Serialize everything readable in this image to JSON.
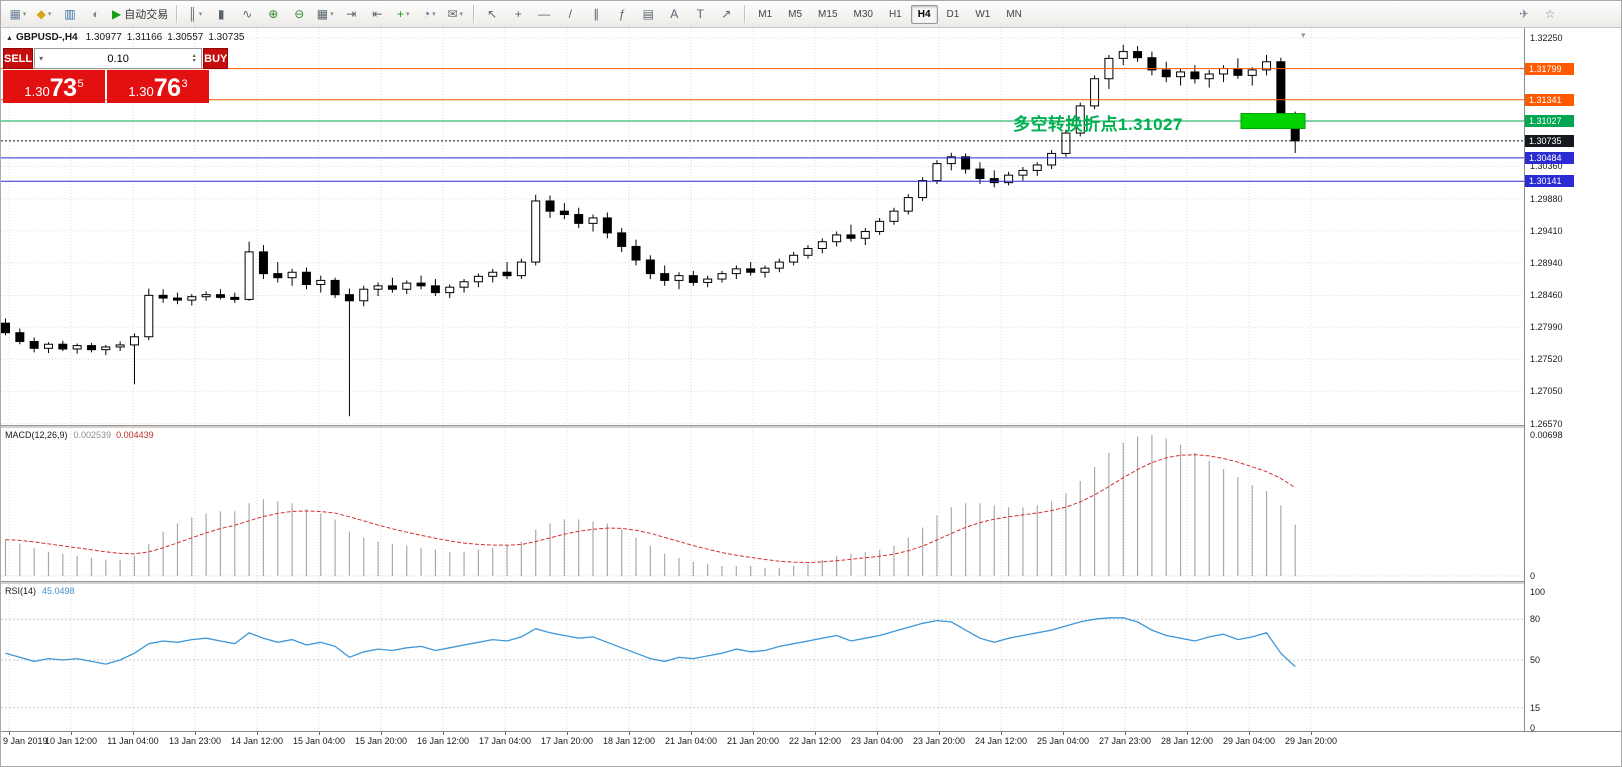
{
  "toolbar": {
    "standard_items": [
      {
        "name": "new-chart-button",
        "glyph": "▦",
        "color": "#6b7f98",
        "dropdown": true
      },
      {
        "name": "profiles-button",
        "glyph": "◆",
        "color": "#d8a418",
        "dropdown": true
      },
      {
        "name": "market-watch-button",
        "glyph": "▥",
        "color": "#3a6ea5"
      },
      {
        "name": "navigator-button",
        "glyph": "◐",
        "color": "#7d8a96"
      },
      {
        "name": "autotrading-button",
        "glyph": "▶",
        "color": "#12a112",
        "label": "自动交易"
      }
    ],
    "chart_items": [
      {
        "name": "bar-chart-button",
        "glyph": "║",
        "dropdown": true
      },
      {
        "name": "candlestick-button",
        "glyph": "▮"
      },
      {
        "name": "line-chart-button",
        "glyph": "∿"
      },
      {
        "name": "zoom-in-button",
        "glyph": "⊕",
        "color": "#2e8b2e"
      },
      {
        "name": "zoom-out-button",
        "glyph": "⊖",
        "color": "#2e8b2e"
      },
      {
        "name": "tile-windows-button",
        "glyph": "▦",
        "dropdown": true
      },
      {
        "name": "auto-scroll-button",
        "glyph": "⇥"
      },
      {
        "name": "chart-shift-button",
        "glyph": "⇤"
      },
      {
        "name": "indicators-button",
        "glyph": "+",
        "color": "#12a112",
        "dropdown": true
      },
      {
        "name": "periods-button",
        "glyph": "◔",
        "color": "#3a6ea5",
        "dropdown": true
      },
      {
        "name": "templates-button",
        "glyph": "✉",
        "dropdown": true
      }
    ],
    "line_items": [
      {
        "name": "cursor-button",
        "glyph": "↖"
      },
      {
        "name": "crosshair-button",
        "glyph": "+"
      },
      {
        "name": "horizontal-line-button",
        "glyph": "—"
      },
      {
        "name": "trendline-button",
        "glyph": "/"
      },
      {
        "name": "channel-button",
        "glyph": "∥"
      },
      {
        "name": "fibonacci-button",
        "glyph": "ƒ"
      },
      {
        "name": "grid-button",
        "glyph": "▤"
      },
      {
        "name": "text-button",
        "glyph": "A"
      },
      {
        "name": "label-button",
        "glyph": "T"
      },
      {
        "name": "arrows-button",
        "glyph": "↗"
      }
    ],
    "timeframes": {
      "items": [
        "M1",
        "M5",
        "M15",
        "M30",
        "H1",
        "H4",
        "D1",
        "W1",
        "MN"
      ],
      "active": "H4"
    },
    "right_items": [
      {
        "name": "send-button",
        "glyph": "✈",
        "color": "#7d8a96"
      },
      {
        "name": "community-button",
        "glyph": "☆",
        "color": "#7d8a96"
      }
    ]
  },
  "icons": {
    "chart_dropdown": "▾",
    "symbol_marker": "▲",
    "volume_up": "▴",
    "volume_down": "▾",
    "volume_preset": "▾"
  },
  "symbol_header": {
    "title": "GBPUSD-,H4",
    "open": "1.30977",
    "high": "1.31166",
    "low": "1.30557",
    "close": "1.30735"
  },
  "one_click": {
    "sell_label": "SELL",
    "buy_label": "BUY",
    "volume": "0.10",
    "sell_price": {
      "prefix": "1.30",
      "big": "73",
      "sup": "5"
    },
    "buy_price": {
      "prefix": "1.30",
      "big": "76",
      "sup": "3"
    }
  },
  "annotation": {
    "text": "多空转换折点1.31027",
    "color": "#00b050"
  },
  "levels": [
    {
      "price": 1.31799,
      "label": "1.31799",
      "color": "#ff5a00",
      "style": "solid"
    },
    {
      "price": 1.31341,
      "label": "1.31341",
      "color": "#ff5a00",
      "style": "solid"
    },
    {
      "price": 1.31027,
      "label": "1.31027",
      "color": "#00a651",
      "style": "solid"
    },
    {
      "price": 1.30735,
      "label": "1.30735",
      "color": "#15191d",
      "style": "dotted"
    },
    {
      "price": 1.30484,
      "label": "1.30484",
      "color": "#2b2bd4",
      "style": "solid"
    },
    {
      "price": 1.30141,
      "label": "1.30141",
      "color": "#2b2bd4",
      "style": "solid"
    }
  ],
  "highlight_rect": {
    "price": 1.31027,
    "color": "#00d300",
    "border": "#00a000"
  },
  "price_axis_gridlines": [
    1.3225,
    1.3036,
    1.2988,
    1.2941,
    1.2894,
    1.2846,
    1.2799,
    1.2752,
    1.2705,
    1.2657
  ],
  "time_axis": {
    "labels": [
      "9 Jan 2019",
      "10 Jan 12:00",
      "11 Jan 04:00",
      "13 Jan 23:00",
      "14 Jan 12:00",
      "15 Jan 04:00",
      "15 Jan 20:00",
      "16 Jan 12:00",
      "17 Jan 04:00",
      "17 Jan 20:00",
      "18 Jan 12:00",
      "21 Jan 04:00",
      "21 Jan 20:00",
      "22 Jan 12:00",
      "23 Jan 04:00",
      "23 Jan 20:00",
      "24 Jan 12:00",
      "25 Jan 04:00",
      "27 Jan 23:00",
      "28 Jan 12:00",
      "29 Jan 04:00",
      "29 Jan 20:00"
    ]
  },
  "chart_data": {
    "type": "candlestick",
    "symbol": "GBPUSD-",
    "timeframe": "H4",
    "price_range": [
      1.2657,
      1.3225
    ],
    "candles": [
      [
        1.2805,
        1.2812,
        1.2787,
        1.2791
      ],
      [
        1.2791,
        1.2797,
        1.2774,
        1.2778
      ],
      [
        1.2778,
        1.2784,
        1.2762,
        1.2768
      ],
      [
        1.2768,
        1.2777,
        1.2761,
        1.2774
      ],
      [
        1.2774,
        1.2779,
        1.2764,
        1.2767
      ],
      [
        1.2767,
        1.2775,
        1.276,
        1.2772
      ],
      [
        1.2772,
        1.2776,
        1.2762,
        1.2766
      ],
      [
        1.2766,
        1.2773,
        1.2758,
        1.277
      ],
      [
        1.277,
        1.2778,
        1.2764,
        1.2773
      ],
      [
        1.2773,
        1.279,
        1.2715,
        1.2785
      ],
      [
        1.2785,
        1.2856,
        1.278,
        1.2846
      ],
      [
        1.2846,
        1.2855,
        1.2835,
        1.2842
      ],
      [
        1.2842,
        1.285,
        1.2833,
        1.2839
      ],
      [
        1.2839,
        1.2848,
        1.2831,
        1.2844
      ],
      [
        1.2844,
        1.2852,
        1.2838,
        1.2847
      ],
      [
        1.2847,
        1.2855,
        1.284,
        1.2843
      ],
      [
        1.2843,
        1.285,
        1.2835,
        1.284
      ],
      [
        1.284,
        1.2925,
        1.2838,
        1.291
      ],
      [
        1.291,
        1.292,
        1.287,
        1.2878
      ],
      [
        1.2878,
        1.2895,
        1.2865,
        1.2872
      ],
      [
        1.2872,
        1.2885,
        1.286,
        1.288
      ],
      [
        1.288,
        1.2887,
        1.2855,
        1.2862
      ],
      [
        1.2862,
        1.2875,
        1.285,
        1.2868
      ],
      [
        1.2868,
        1.2872,
        1.2842,
        1.2847
      ],
      [
        1.2847,
        1.2856,
        1.2668,
        1.2838
      ],
      [
        1.2838,
        1.286,
        1.283,
        1.2855
      ],
      [
        1.2855,
        1.2865,
        1.2845,
        1.286
      ],
      [
        1.286,
        1.2872,
        1.285,
        1.2855
      ],
      [
        1.2855,
        1.2868,
        1.2848,
        1.2864
      ],
      [
        1.2864,
        1.2875,
        1.2855,
        1.286
      ],
      [
        1.286,
        1.287,
        1.2845,
        1.285
      ],
      [
        1.285,
        1.2862,
        1.2842,
        1.2858
      ],
      [
        1.2858,
        1.287,
        1.285,
        1.2866
      ],
      [
        1.2866,
        1.2878,
        1.2858,
        1.2874
      ],
      [
        1.2874,
        1.2885,
        1.2865,
        1.288
      ],
      [
        1.288,
        1.2895,
        1.287,
        1.2875
      ],
      [
        1.2875,
        1.29,
        1.287,
        1.2895
      ],
      [
        1.2895,
        1.2994,
        1.289,
        1.2985
      ],
      [
        1.2985,
        1.2993,
        1.296,
        1.297
      ],
      [
        1.297,
        1.2982,
        1.2958,
        1.2965
      ],
      [
        1.2965,
        1.2975,
        1.2945,
        1.2952
      ],
      [
        1.2952,
        1.2965,
        1.294,
        1.296
      ],
      [
        1.296,
        1.2968,
        1.293,
        1.2938
      ],
      [
        1.2938,
        1.2945,
        1.291,
        1.2918
      ],
      [
        1.2918,
        1.2928,
        1.289,
        1.2898
      ],
      [
        1.2898,
        1.2905,
        1.287,
        1.2878
      ],
      [
        1.2878,
        1.289,
        1.286,
        1.2868
      ],
      [
        1.2868,
        1.288,
        1.2855,
        1.2875
      ],
      [
        1.2875,
        1.2882,
        1.286,
        1.2865
      ],
      [
        1.2865,
        1.2875,
        1.2858,
        1.287
      ],
      [
        1.287,
        1.2882,
        1.2865,
        1.2878
      ],
      [
        1.2878,
        1.289,
        1.287,
        1.2885
      ],
      [
        1.2885,
        1.2895,
        1.2875,
        1.288
      ],
      [
        1.288,
        1.289,
        1.2872,
        1.2886
      ],
      [
        1.2886,
        1.29,
        1.288,
        1.2895
      ],
      [
        1.2895,
        1.291,
        1.289,
        1.2905
      ],
      [
        1.2905,
        1.292,
        1.29,
        1.2915
      ],
      [
        1.2915,
        1.293,
        1.2908,
        1.2925
      ],
      [
        1.2925,
        1.294,
        1.2918,
        1.2935
      ],
      [
        1.2935,
        1.295,
        1.2925,
        1.293
      ],
      [
        1.293,
        1.2945,
        1.292,
        1.294
      ],
      [
        1.294,
        1.296,
        1.2935,
        1.2955
      ],
      [
        1.2955,
        1.2975,
        1.295,
        1.297
      ],
      [
        1.297,
        1.2995,
        1.2965,
        1.299
      ],
      [
        1.299,
        1.302,
        1.2985,
        1.3015
      ],
      [
        1.3015,
        1.3045,
        1.301,
        1.304
      ],
      [
        1.304,
        1.3056,
        1.303,
        1.305
      ],
      [
        1.305,
        1.3055,
        1.3025,
        1.3032
      ],
      [
        1.3032,
        1.3042,
        1.301,
        1.3018
      ],
      [
        1.3018,
        1.303,
        1.3005,
        1.3012
      ],
      [
        1.3012,
        1.3028,
        1.3008,
        1.3023
      ],
      [
        1.3023,
        1.3035,
        1.3015,
        1.303
      ],
      [
        1.303,
        1.3042,
        1.3022,
        1.3038
      ],
      [
        1.3038,
        1.306,
        1.3032,
        1.3055
      ],
      [
        1.3055,
        1.309,
        1.305,
        1.3085
      ],
      [
        1.3085,
        1.313,
        1.308,
        1.3125
      ],
      [
        1.3125,
        1.317,
        1.312,
        1.3165
      ],
      [
        1.3165,
        1.32,
        1.315,
        1.3195
      ],
      [
        1.3195,
        1.3215,
        1.3185,
        1.3205
      ],
      [
        1.3205,
        1.3213,
        1.319,
        1.3196
      ],
      [
        1.3196,
        1.3205,
        1.317,
        1.3178
      ],
      [
        1.3178,
        1.319,
        1.316,
        1.3168
      ],
      [
        1.3168,
        1.318,
        1.3155,
        1.3175
      ],
      [
        1.3175,
        1.3185,
        1.3158,
        1.3165
      ],
      [
        1.3165,
        1.3178,
        1.3152,
        1.3172
      ],
      [
        1.3172,
        1.3185,
        1.316,
        1.318
      ],
      [
        1.318,
        1.3195,
        1.3165,
        1.317
      ],
      [
        1.317,
        1.3182,
        1.3155,
        1.3178
      ],
      [
        1.3178,
        1.32,
        1.317,
        1.319
      ],
      [
        1.319,
        1.3196,
        1.31,
        1.3105
      ],
      [
        1.30977,
        1.31166,
        1.30557,
        1.30735
      ]
    ],
    "macd": {
      "label": "MACD(12,26,9)",
      "main_value": "0.002539",
      "signal_value": "0.004439",
      "scale_max_label": "0.00698",
      "scale_min_label": "0",
      "scale_max": 0.00698,
      "histogram": [
        0.0018,
        0.0016,
        0.0014,
        0.0012,
        0.0011,
        0.001,
        0.0009,
        0.0008,
        0.0008,
        0.001,
        0.0016,
        0.0022,
        0.0026,
        0.0029,
        0.0031,
        0.0032,
        0.0032,
        0.0036,
        0.0038,
        0.0037,
        0.0036,
        0.0033,
        0.0031,
        0.0028,
        0.0022,
        0.0019,
        0.0017,
        0.0016,
        0.0015,
        0.0014,
        0.0013,
        0.0012,
        0.0012,
        0.0013,
        0.0014,
        0.0015,
        0.0017,
        0.0023,
        0.0026,
        0.0028,
        0.0028,
        0.0027,
        0.0026,
        0.0023,
        0.0019,
        0.0015,
        0.0011,
        0.0009,
        0.0007,
        0.0006,
        0.0005,
        0.0005,
        0.0005,
        0.0004,
        0.0004,
        0.0005,
        0.0006,
        0.0008,
        0.001,
        0.0011,
        0.0012,
        0.0013,
        0.0015,
        0.0019,
        0.0024,
        0.003,
        0.0034,
        0.0036,
        0.0036,
        0.0035,
        0.0034,
        0.0034,
        0.0035,
        0.0037,
        0.0041,
        0.0047,
        0.0054,
        0.0061,
        0.0066,
        0.0069,
        0.00698,
        0.0068,
        0.0065,
        0.0061,
        0.0057,
        0.0053,
        0.0049,
        0.0045,
        0.0042,
        0.0035,
        0.002539
      ]
    },
    "rsi": {
      "label": "RSI(14)",
      "value": "45.0498",
      "scale_labels": [
        100,
        80,
        50,
        15,
        0
      ],
      "level_lines": [
        80,
        50,
        15
      ],
      "series": [
        55,
        52,
        49,
        51,
        50,
        51,
        49,
        47,
        50,
        55,
        62,
        64,
        63,
        65,
        66,
        64,
        62,
        70,
        66,
        63,
        65,
        61,
        63,
        60,
        52,
        56,
        58,
        57,
        59,
        60,
        57,
        59,
        61,
        63,
        65,
        64,
        67,
        73,
        70,
        68,
        66,
        67,
        63,
        59,
        55,
        51,
        49,
        52,
        51,
        53,
        55,
        58,
        56,
        57,
        60,
        62,
        64,
        66,
        68,
        64,
        66,
        68,
        71,
        74,
        77,
        79,
        78,
        72,
        66,
        63,
        66,
        68,
        70,
        72,
        75,
        78,
        80,
        81,
        81,
        78,
        72,
        68,
        66,
        64,
        67,
        69,
        65,
        67,
        70,
        55,
        45.05
      ]
    }
  }
}
